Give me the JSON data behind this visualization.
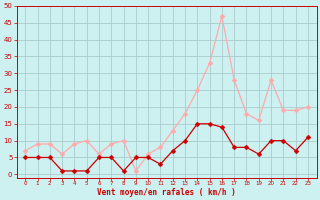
{
  "xlabel": "Vent moyen/en rafales ( km/h )",
  "background_color": "#cdf0f0",
  "grid_color": "#aacccc",
  "x_labels": [
    "0",
    "1",
    "2",
    "3",
    "4",
    "5",
    "6",
    "7",
    "8",
    "9",
    "10",
    "11",
    "12",
    "13",
    "14",
    "15",
    "16",
    "17",
    "18",
    "19",
    "20",
    "21",
    "22",
    "23"
  ],
  "wind_mean": [
    5,
    5,
    5,
    1,
    1,
    1,
    5,
    5,
    1,
    5,
    5,
    3,
    7,
    10,
    15,
    15,
    14,
    8,
    8,
    6,
    10,
    10,
    7,
    11
  ],
  "wind_gust": [
    7,
    9,
    9,
    6,
    9,
    10,
    6,
    9,
    10,
    1,
    6,
    8,
    13,
    18,
    25,
    33,
    47,
    28,
    18,
    16,
    28,
    19,
    19,
    20
  ],
  "mean_color": "#cc0000",
  "gust_color": "#ffaaaa",
  "ylim": [
    -1,
    50
  ],
  "ytick_vals": [
    0,
    5,
    10,
    15,
    20,
    25,
    30,
    35,
    40,
    45,
    50
  ],
  "marker_size": 2.5,
  "line_width": 0.9
}
